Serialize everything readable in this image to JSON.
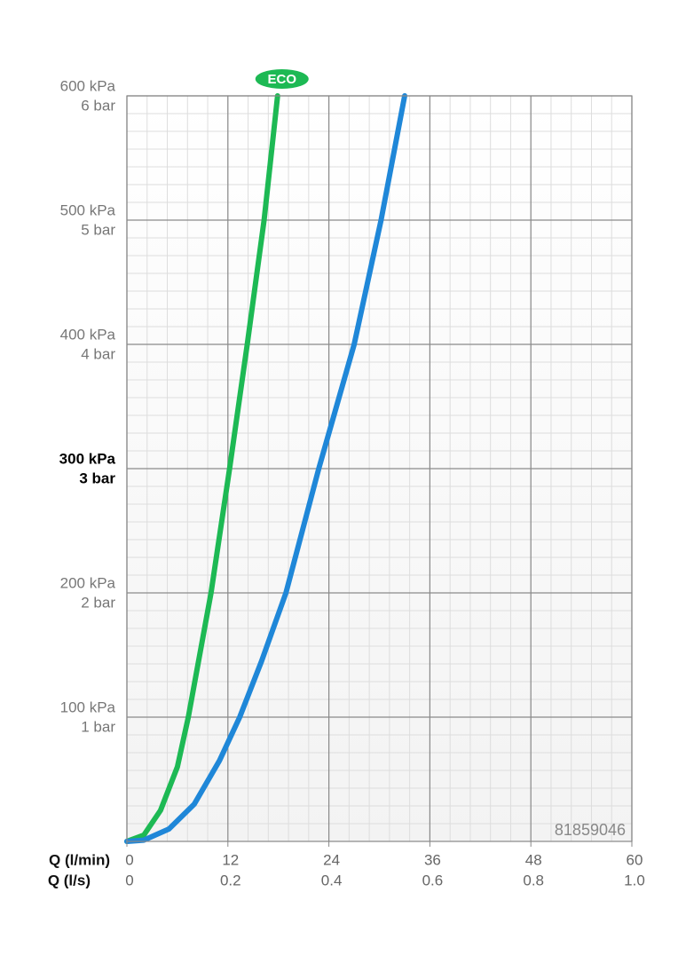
{
  "chart_data": {
    "type": "line",
    "xlabel": "Q (l/min)",
    "x2label": "Q (l/s)",
    "annotation": "81859046",
    "xlim": [
      0,
      60
    ],
    "xticks": [
      0,
      12,
      24,
      36,
      48,
      60
    ],
    "x2lim": [
      0,
      1.0
    ],
    "x2ticks": [
      0,
      0.2,
      0.4,
      0.6,
      0.8,
      {
        "value": 1.0,
        "label": "1.0"
      }
    ],
    "ylim": [
      0,
      600
    ],
    "yticks": [
      {
        "value": 100,
        "label": "100 kPa"
      },
      {
        "value": 200,
        "label": "200 kPa"
      },
      {
        "value": 300,
        "label": "300 kPa"
      },
      {
        "value": 400,
        "label": "400 kPa"
      },
      {
        "value": 500,
        "label": "500 kPa"
      },
      {
        "value": 600,
        "label": "600 kPa"
      }
    ],
    "y2lim": [
      0,
      6
    ],
    "y2ticks": [
      {
        "value": 1,
        "label": "1 bar"
      },
      {
        "value": 2,
        "label": "2 bar"
      },
      {
        "value": 3,
        "label": "3 bar"
      },
      {
        "value": 4,
        "label": "4 bar"
      },
      {
        "value": 5,
        "label": "5 bar"
      },
      {
        "value": 6,
        "label": "6 bar"
      }
    ],
    "highlight_ytick": 300,
    "grid": true,
    "series": [
      {
        "name": "ECO",
        "color": "#1db954",
        "x": [
          0,
          2,
          4,
          6,
          7.3,
          10,
          12.2,
          14.3,
          16.3,
          17.9
        ],
        "values": [
          0,
          5,
          25,
          60,
          100,
          200,
          300,
          400,
          500,
          600
        ]
      },
      {
        "color": "#1f87d8",
        "x": [
          0,
          2,
          5,
          8,
          11,
          13.4,
          16,
          18.9,
          22.8,
          27,
          30.2,
          33
        ],
        "values": [
          0,
          1,
          10,
          30,
          65,
          100,
          145,
          200,
          300,
          400,
          500,
          600
        ]
      }
    ]
  }
}
